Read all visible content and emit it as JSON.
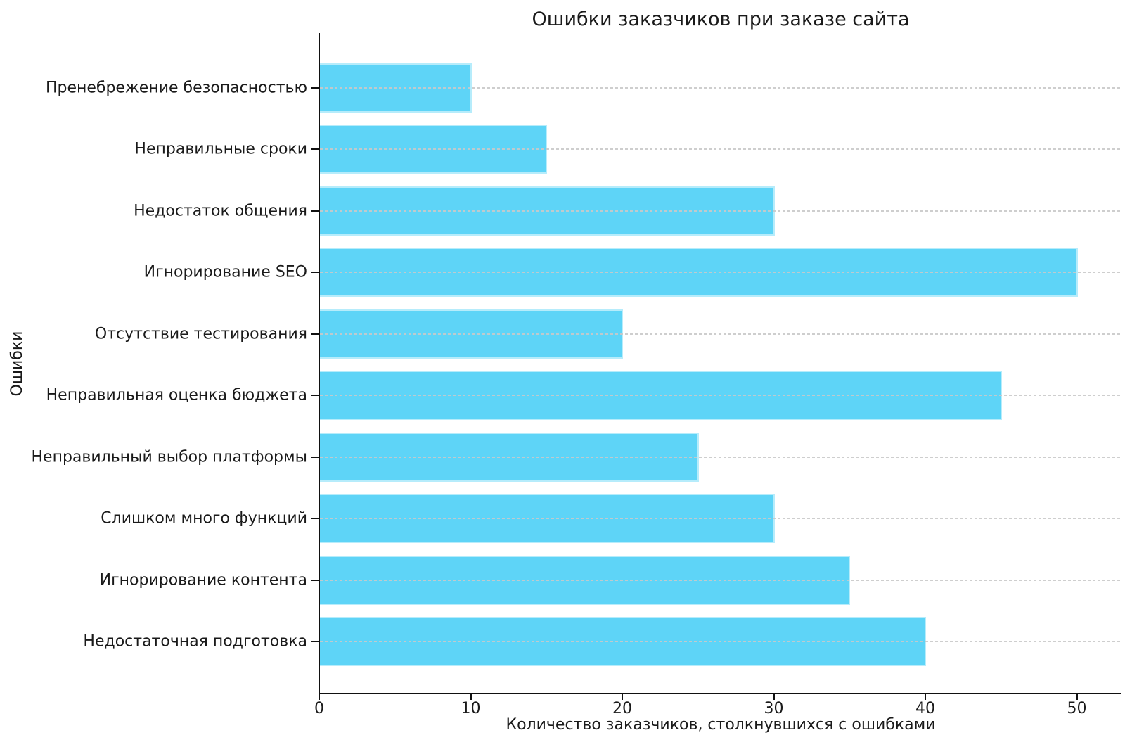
{
  "chart_data": {
    "type": "bar",
    "orientation": "horizontal",
    "title": "Ошибки заказчиков при заказе сайта",
    "xlabel": "Количество заказчиков, столкнувшихся с ошибками",
    "ylabel": "Ошибки",
    "categories": [
      "Пренебрежение безопасностью",
      "Неправильные сроки",
      "Недостаток общения",
      "Игнорирование SEO",
      "Отсутствие тестирования",
      "Неправильная оценка бюджета",
      "Неправильный выбор платформы",
      "Слишком много функций",
      "Игнорирование контента",
      "Недостаточная подготовка"
    ],
    "values": [
      10,
      15,
      30,
      50,
      20,
      45,
      25,
      30,
      35,
      40
    ],
    "xticks": [
      0,
      10,
      20,
      30,
      40,
      50
    ],
    "xlim": [
      0,
      52.9
    ],
    "grid": {
      "axis": "y",
      "style": "dashed",
      "on": true
    },
    "legend": {
      "visible": false
    },
    "colors": {
      "bar": "#5ED4F7",
      "grid": "#c9c9c9",
      "axis": "#111111",
      "text": "#1a1a1a",
      "background": "#ffffff"
    }
  }
}
